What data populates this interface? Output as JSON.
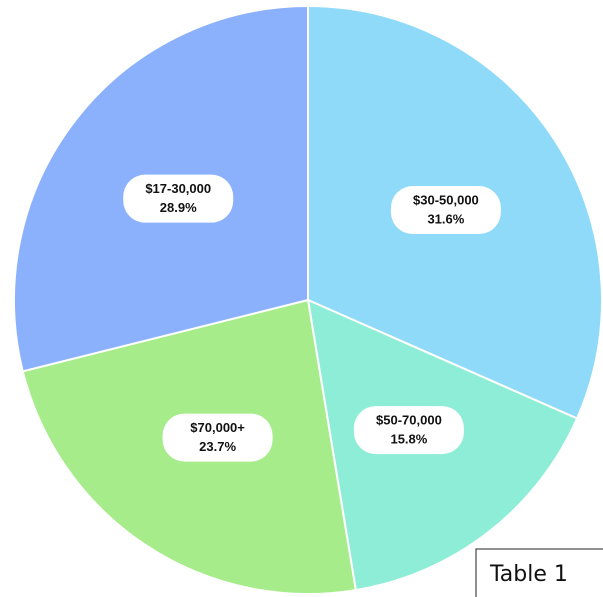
{
  "chart_data": {
    "type": "pie",
    "categories": [
      "$30-50,000",
      "$50-70,000",
      "$70,000+",
      "$17-30,000"
    ],
    "values": [
      31.6,
      15.8,
      23.7,
      28.9
    ],
    "value_labels": [
      "31.6%",
      "15.8%",
      "23.7%",
      "28.9%"
    ],
    "colors": [
      "#8fdaf9",
      "#8eedd7",
      "#a6ec8b",
      "#8cb1fc"
    ],
    "annotation": "Table 1"
  }
}
